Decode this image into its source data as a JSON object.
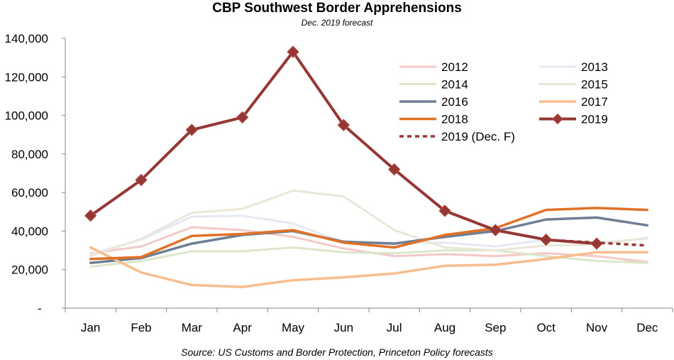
{
  "chart_data": {
    "type": "line",
    "title": "CBP Southwest Border Apprehensions",
    "subtitle": "Dec. 2019 forecast",
    "source": "Source: US Customs and Border Protection, Princeton Policy forecasts",
    "xlabel": "",
    "ylabel": "",
    "categories": [
      "Jan",
      "Feb",
      "Mar",
      "Apr",
      "May",
      "Jun",
      "Jul",
      "Aug",
      "Sep",
      "Oct",
      "Nov",
      "Dec"
    ],
    "ylim": [
      0,
      140000
    ],
    "yticks": [
      0,
      20000,
      40000,
      60000,
      80000,
      100000,
      120000,
      140000
    ],
    "ytick_labels": [
      "-",
      "20,000",
      "40,000",
      "60,000",
      "80,000",
      "100,000",
      "120,000",
      "140,000"
    ],
    "grid": false,
    "legend_position": "top-right",
    "series": [
      {
        "name": "2012",
        "color": "#f2c9c6",
        "width": 3,
        "dash": false,
        "marker": false,
        "values": [
          28500,
          32000,
          42000,
          40500,
          37000,
          31000,
          27000,
          28000,
          27000,
          28500,
          27000,
          24000
        ]
      },
      {
        "name": "2013",
        "color": "#e6e9f4",
        "width": 3,
        "dash": false,
        "marker": false,
        "values": [
          28000,
          35500,
          47500,
          48000,
          44000,
          34000,
          34000,
          34000,
          32000,
          35500,
          34000,
          36000
        ]
      },
      {
        "name": "2014",
        "color": "#dbe6cb",
        "width": 3,
        "dash": false,
        "marker": false,
        "values": [
          21500,
          24500,
          29500,
          29500,
          31500,
          29000,
          28500,
          30000,
          30000,
          27000,
          24500,
          23500
        ]
      },
      {
        "name": "2015",
        "color": "#eae7d9",
        "width": 3,
        "dash": false,
        "marker": false,
        "values": [
          27000,
          36000,
          49500,
          51500,
          61000,
          58000,
          40500,
          31500,
          30000,
          32500,
          33000,
          36500
        ]
      },
      {
        "name": "2016",
        "color": "#6e7e93",
        "width": 3.5,
        "dash": false,
        "marker": false,
        "values": [
          23500,
          26000,
          33500,
          38000,
          40000,
          34500,
          33500,
          37000,
          40000,
          46000,
          47000,
          43000
        ]
      },
      {
        "name": "2017",
        "color": "#f7bd8d",
        "width": 3.5,
        "dash": false,
        "marker": false,
        "values": [
          31500,
          18500,
          12000,
          11000,
          14500,
          16000,
          18000,
          22000,
          22500,
          25500,
          29000,
          29000
        ]
      },
      {
        "name": "2018",
        "color": "#e07126",
        "width": 3.5,
        "dash": false,
        "marker": false,
        "values": [
          25500,
          26500,
          37500,
          38500,
          40500,
          34000,
          31500,
          38000,
          41500,
          51000,
          52000,
          51000
        ]
      },
      {
        "name": "2019",
        "color": "#953735",
        "width": 4,
        "dash": false,
        "marker": true,
        "values": [
          48000,
          66500,
          92500,
          99000,
          133000,
          95000,
          72000,
          50500,
          40500,
          35500,
          33500,
          null
        ]
      },
      {
        "name": "2019 (Dec. F)",
        "color": "#953735",
        "width": 3.5,
        "dash": true,
        "marker": false,
        "values": [
          null,
          null,
          null,
          null,
          null,
          null,
          null,
          null,
          null,
          35500,
          34000,
          32500
        ]
      }
    ]
  }
}
